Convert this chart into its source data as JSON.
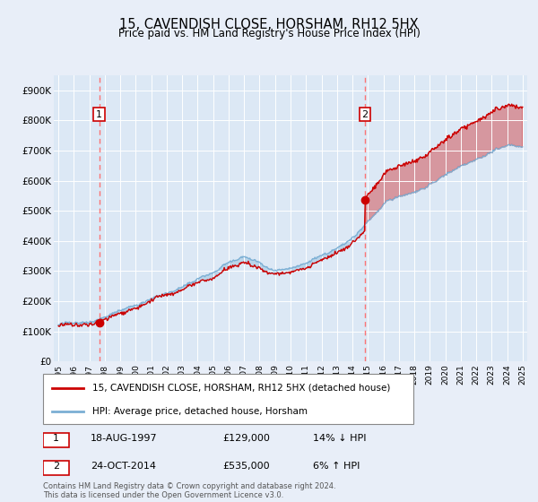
{
  "title": "15, CAVENDISH CLOSE, HORSHAM, RH12 5HX",
  "subtitle": "Price paid vs. HM Land Registry's House Price Index (HPI)",
  "ylim": [
    0,
    950000
  ],
  "yticks": [
    0,
    100000,
    200000,
    300000,
    400000,
    500000,
    600000,
    700000,
    800000,
    900000
  ],
  "ytick_labels": [
    "£0",
    "£100K",
    "£200K",
    "£300K",
    "£400K",
    "£500K",
    "£600K",
    "£700K",
    "£800K",
    "£900K"
  ],
  "xlim_start": 1994.7,
  "xlim_end": 2025.3,
  "background_color": "#e8eef8",
  "plot_bg_color": "#dce8f5",
  "grid_color": "#ffffff",
  "red_line_color": "#cc0000",
  "blue_line_color": "#7bafd4",
  "dashed_line_color": "#ff6666",
  "purchase1_year": 1997.63,
  "purchase1_price": 129000,
  "purchase2_year": 2014.81,
  "purchase2_price": 535000,
  "legend_line1": "15, CAVENDISH CLOSE, HORSHAM, RH12 5HX (detached house)",
  "legend_line2": "HPI: Average price, detached house, Horsham",
  "table_row1": [
    "1",
    "18-AUG-1997",
    "£129,000",
    "14% ↓ HPI"
  ],
  "table_row2": [
    "2",
    "24-OCT-2014",
    "£535,000",
    "6% ↑ HPI"
  ],
  "footer": "Contains HM Land Registry data © Crown copyright and database right 2024.\nThis data is licensed under the Open Government Licence v3.0."
}
